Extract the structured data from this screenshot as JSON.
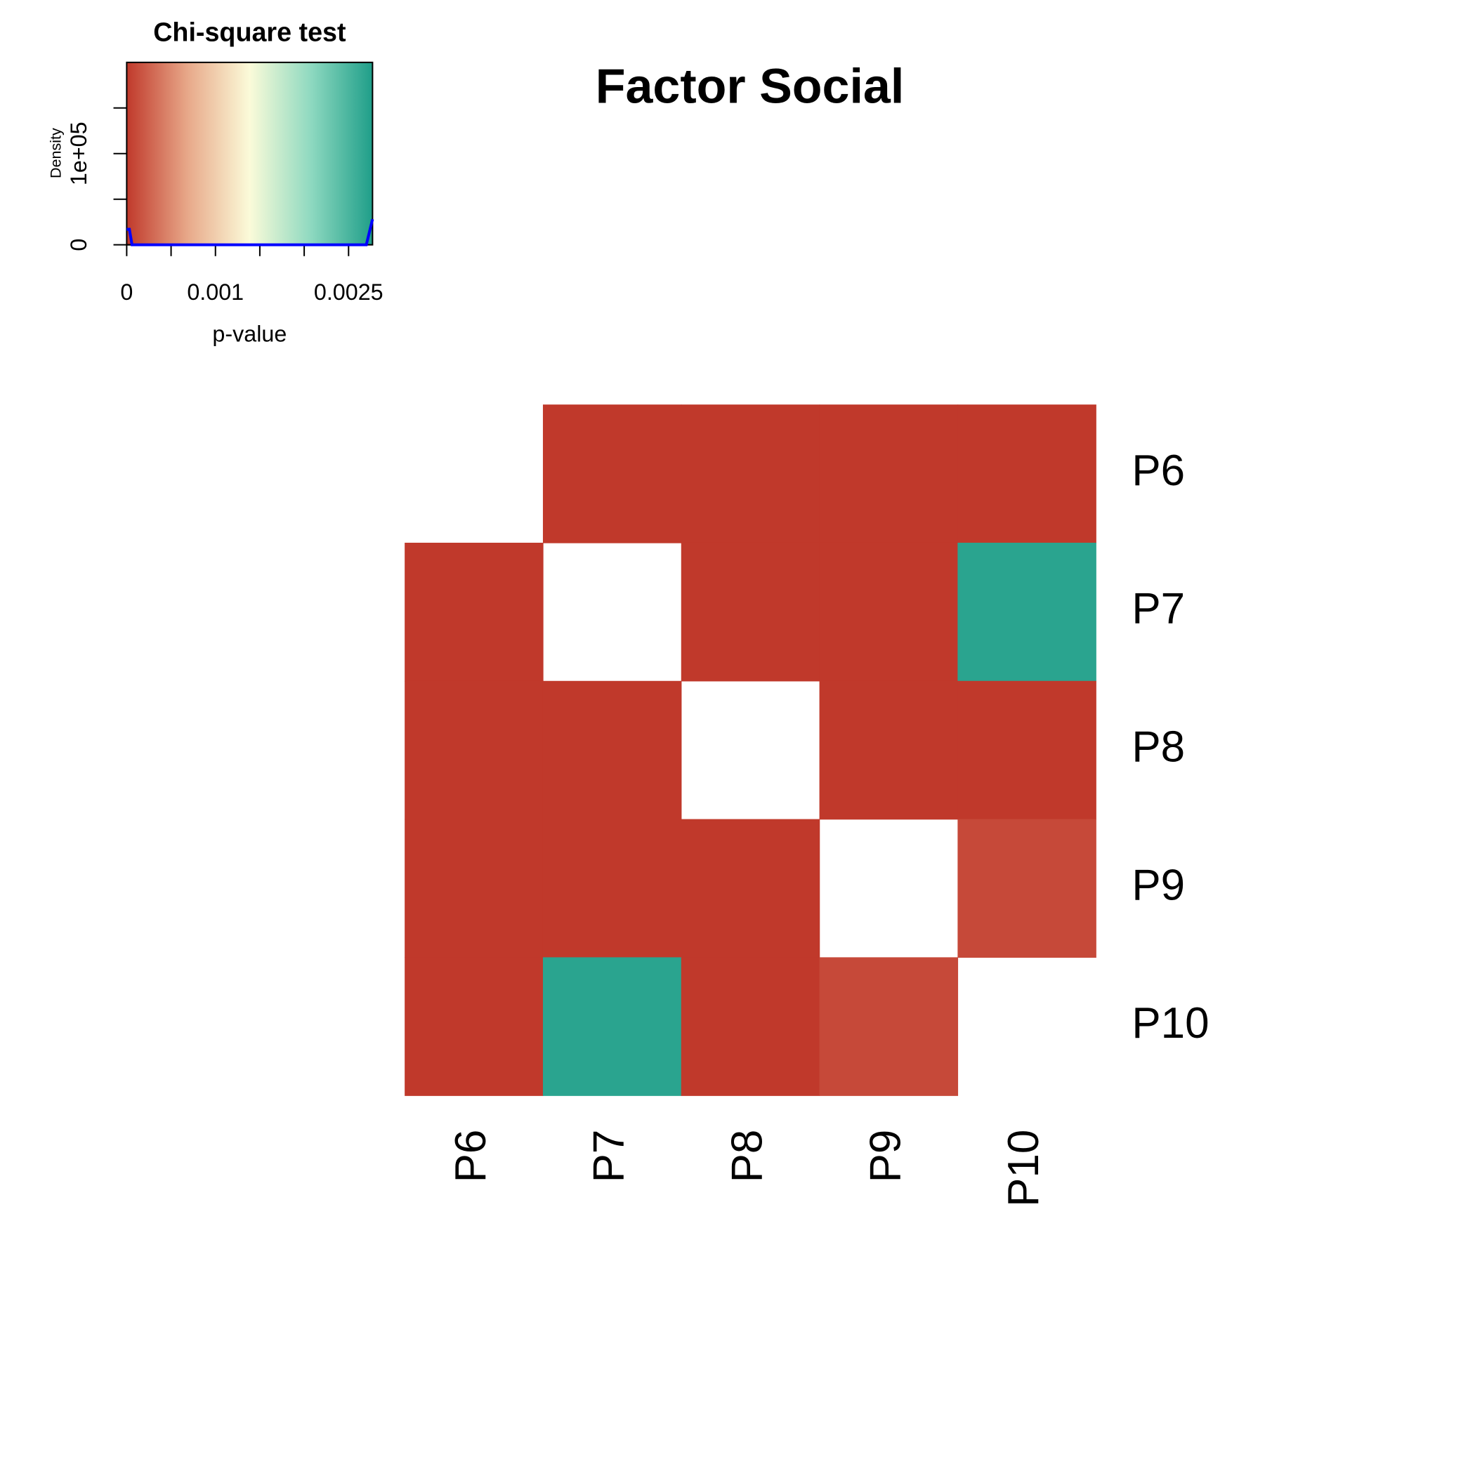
{
  "chart_data": {
    "type": "heatmap",
    "title": "Factor Social",
    "x_categories": [
      "P6",
      "P7",
      "P8",
      "P9",
      "P10"
    ],
    "y_categories": [
      "P6",
      "P7",
      "P8",
      "P9",
      "P10"
    ],
    "values": [
      [
        null,
        0,
        0,
        0,
        0
      ],
      [
        0,
        null,
        0,
        0,
        0.0027
      ],
      [
        0,
        0,
        null,
        0,
        0
      ],
      [
        0,
        0,
        0,
        null,
        0.0001
      ],
      [
        0,
        0.0027,
        0,
        0.0001,
        null
      ]
    ],
    "palette": [
      "#c0392b",
      "#e8a98a",
      "#fbfbd9",
      "#8ed9c0",
      "#1f9e89"
    ],
    "color_key": {
      "title": "Chi-square test",
      "xlabel": "p-value",
      "ylabel": "Density",
      "xlim": [
        0,
        0.00277
      ],
      "xticks": [
        0,
        0.001,
        0.0025
      ],
      "xminor": [
        0.0005,
        0.0015,
        0.002
      ],
      "ylim": [
        0,
        200000
      ],
      "yticks": [
        0,
        {
          "value": 100000,
          "label": "1e+05"
        }
      ],
      "yminor": [
        50000,
        150000
      ],
      "density_x": [
        0,
        3e-05,
        6e-05,
        0.0001,
        0.0027,
        0.00277
      ],
      "density_y": [
        17000,
        17000,
        0,
        0,
        0,
        28000
      ],
      "density_color": "#0000ff"
    }
  }
}
